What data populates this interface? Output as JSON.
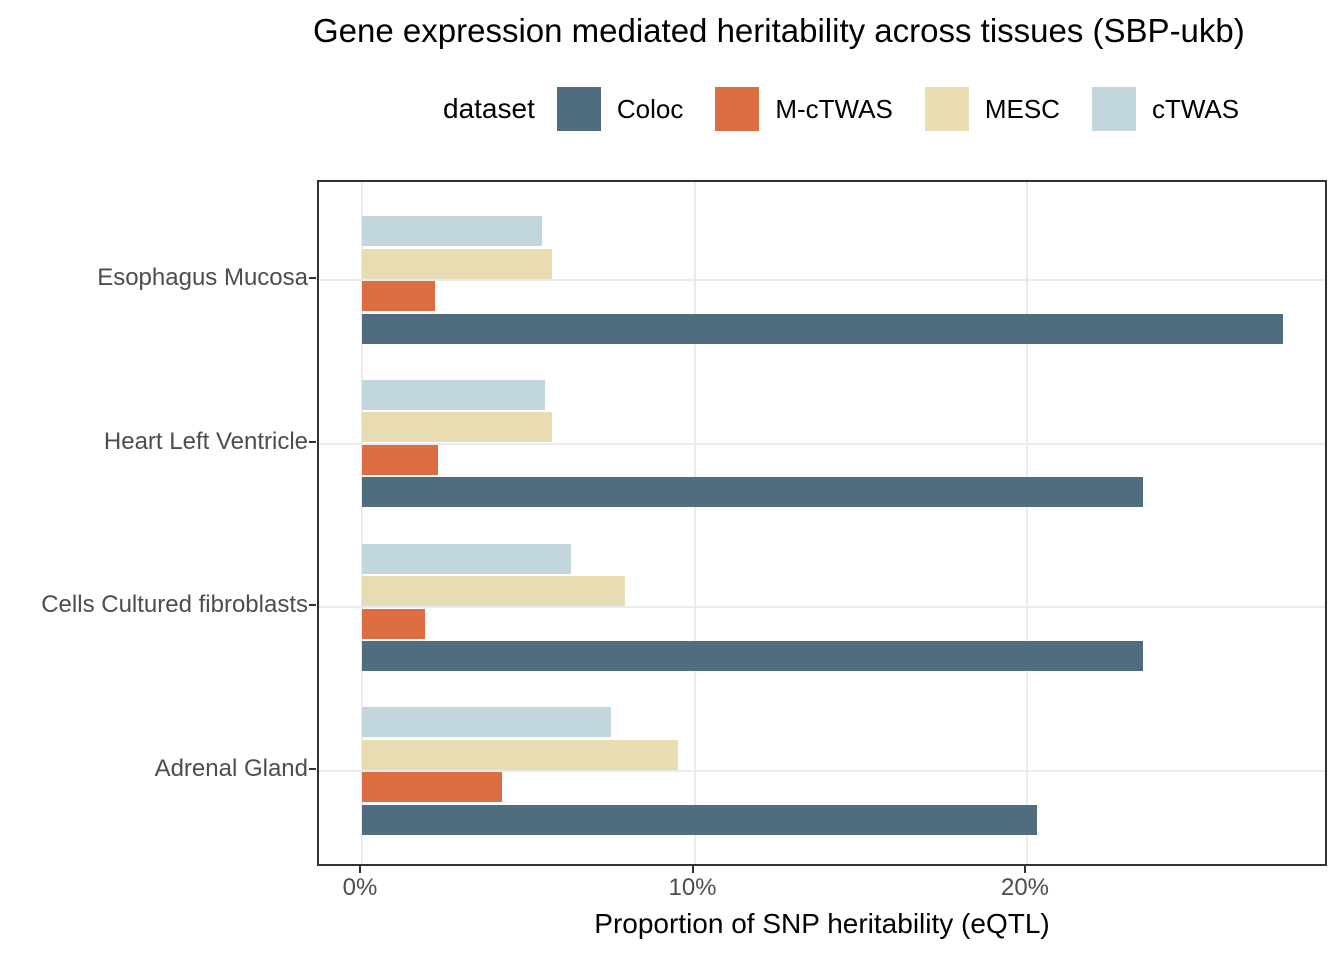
{
  "title": "Gene expression mediated heritability across tissues (SBP-ukb)",
  "legend": {
    "title": "dataset",
    "items": [
      {
        "label": "Coloc",
        "color": "#4f6d7e"
      },
      {
        "label": "M-cTWAS",
        "color": "#dc6e42"
      },
      {
        "label": "MESC",
        "color": "#e8dcb3"
      },
      {
        "label": "cTWAS",
        "color": "#c1d6dd"
      }
    ]
  },
  "chart_data": {
    "type": "bar",
    "orientation": "horizontal",
    "title": "Gene expression mediated heritability across tissues (SBP-ukb)",
    "xlabel": "Proportion of SNP heritability (eQTL)",
    "ylabel": "",
    "categories": [
      "Esophagus Mucosa",
      "Heart Left Ventricle",
      "Cells Cultured fibroblasts",
      "Adrenal Gland"
    ],
    "series": [
      {
        "name": "Coloc",
        "color": "#4f6d7e",
        "values": [
          27.7,
          23.5,
          23.5,
          20.3
        ]
      },
      {
        "name": "M-cTWAS",
        "color": "#dc6e42",
        "values": [
          2.2,
          2.3,
          1.9,
          4.2
        ]
      },
      {
        "name": "MESC",
        "color": "#e8dcb3",
        "values": [
          5.7,
          5.7,
          7.9,
          9.5
        ]
      },
      {
        "name": "cTWAS",
        "color": "#c1d6dd",
        "values": [
          5.4,
          5.5,
          6.3,
          7.5
        ]
      }
    ],
    "within_group_order_top_to_bottom": [
      "cTWAS",
      "MESC",
      "M-cTWAS",
      "Coloc"
    ],
    "x_ticks": [
      {
        "label": "0%",
        "value": 0
      },
      {
        "label": "10%",
        "value": 10
      },
      {
        "label": "20%",
        "value": 20
      }
    ],
    "xlim": [
      0,
      29.1
    ],
    "grid": "major vertical at ticks + horizontal at category centers, light gray",
    "legend_position": "top",
    "unit": "percent of SNP heritability"
  },
  "colors": {
    "panel_border": "#333333",
    "gridline": "#ebebeb",
    "axis_text": "#4d4d4d",
    "tick_mark": "#333333",
    "background": "#ffffff"
  }
}
